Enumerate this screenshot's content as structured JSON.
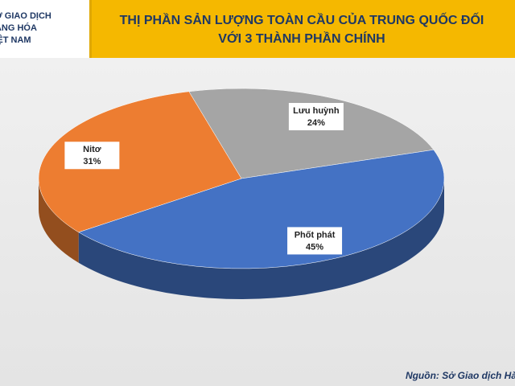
{
  "header": {
    "logo": [
      "SỞ GIAO DỊCH",
      "HÀNG HÓA",
      "VIỆT NAM"
    ]
  },
  "chart_data": {
    "type": "pie",
    "title": "THỊ PHẦN SẢN LƯỢNG TOÀN CẦU CỦA TRUNG QUỐC ĐỐI VỚI 3 THÀNH PHẦN CHÍNH",
    "categories": [
      "Lưu huỳnh",
      "Phốt phát",
      "Nitơ"
    ],
    "values": [
      24,
      45,
      31
    ],
    "value_labels": [
      "24%",
      "45%",
      "31%"
    ],
    "colors": [
      "#a5a5a5",
      "#4472c4",
      "#ed7d31"
    ]
  },
  "source": "Nguồn: Sở Giao dịch Hà"
}
